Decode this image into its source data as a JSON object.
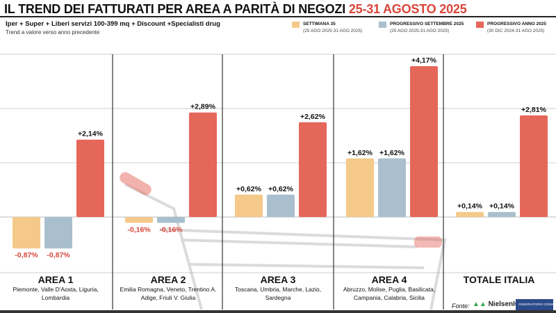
{
  "header": {
    "title": "IL TREND DEI FATTURATI PER AREA A PARITÀ DI NEGOZI",
    "title_dates": "25-31 AGOSTO 2025",
    "subtitle": "Iper + Super + Liberi servizi 100-399 mq + Discount +Specialisti drug",
    "note": "Trend a valore verso anno precedente"
  },
  "legend": [
    {
      "name": "SETTIMANA 35",
      "dates": "(25 AGO 2025-31 AGO 2025)",
      "color": "#f5c98a"
    },
    {
      "name": "PROGRESSIVO SETTEMBRE 2025",
      "dates": "(25 AGO 2025-31 AGO 2025)",
      "color": "#a9bfcd"
    },
    {
      "name": "PROGRESSIVO ANNO 2025",
      "dates": "(30 DIC 2024-31 AGO 2025)",
      "color": "#e5675a"
    }
  ],
  "chart_data": {
    "type": "bar",
    "categories": [
      "AREA 1",
      "AREA 2",
      "AREA 3",
      "AREA 4",
      "TOTALE ITALIA"
    ],
    "category_details": [
      "Piemonte, Valle D'Aosta, Liguria, Lombardia",
      "Emilia Romagna, Veneto, Trentino A. Adige, Friuli V. Giulia",
      "Toscana, Umbria, Marche, Lazio, Sardegna",
      "Abruzzo, Molise, Puglia, Basilicata, Campania, Calabria, Sicilia",
      ""
    ],
    "series": [
      {
        "name": "SETTIMANA 35",
        "values": [
          -0.87,
          -0.16,
          0.62,
          1.62,
          0.14
        ]
      },
      {
        "name": "PROGRESSIVO SETTEMBRE 2025",
        "values": [
          -0.87,
          -0.16,
          0.62,
          1.62,
          0.14
        ]
      },
      {
        "name": "PROGRESSIVO ANNO 2025",
        "values": [
          2.14,
          2.89,
          2.62,
          4.17,
          2.81
        ]
      }
    ],
    "data_labels": [
      [
        "-0,87%",
        "-0,16%",
        "+0,62%",
        "+1,62%",
        "+0,14%"
      ],
      [
        "-0,87%",
        "-0,16%",
        "+0,62%",
        "+1,62%",
        "+0,14%"
      ],
      [
        "+2,14%",
        "+2,89%",
        "+2,62%",
        "+4,17%",
        "+2,81%"
      ]
    ],
    "unit": "%",
    "ylim": [
      -1.5,
      4.5
    ],
    "grid": true,
    "legend_position": "top-right"
  },
  "footer": {
    "source_label": "Fonte:",
    "logo1": "NielsenIQ",
    "logo2": "OSSERVATORIO CONSUMI"
  }
}
